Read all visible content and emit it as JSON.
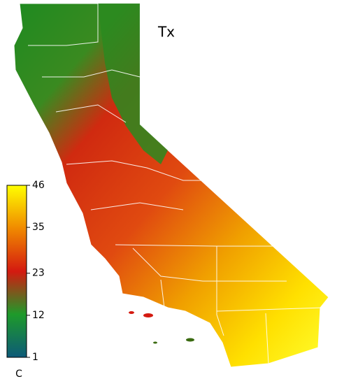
{
  "map": {
    "title": "Tx",
    "colorbar": {
      "range": [
        1,
        46
      ],
      "ticks": [
        1,
        12,
        23,
        35,
        46
      ],
      "unit": "C",
      "colors": [
        "#0d5a78",
        "#1e9a2a",
        "#d41a10",
        "#f08a00",
        "#ffff00"
      ]
    }
  }
}
